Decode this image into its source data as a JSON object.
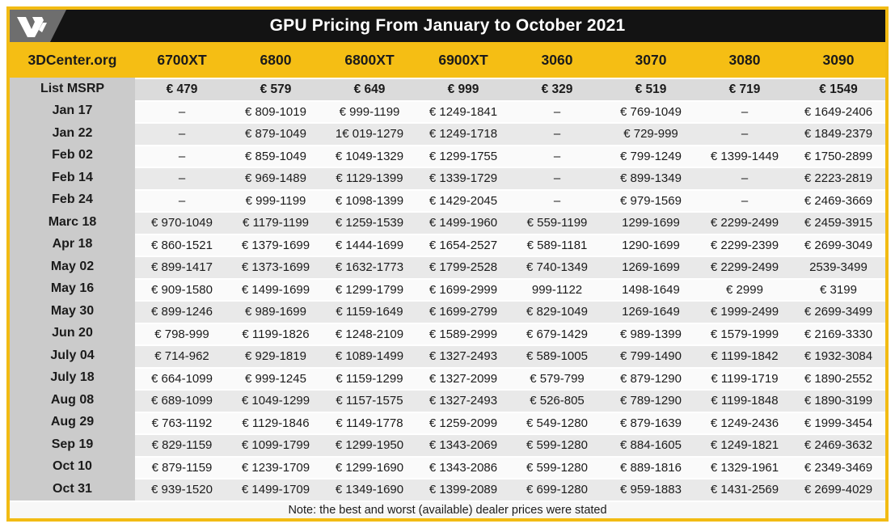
{
  "title": "GPU Pricing From January to October 2021",
  "note": "Note: the best and worst (available) dealer prices were stated",
  "icons": {
    "logo": "videocardz-v-icon"
  },
  "colors": {
    "accent_gold": "#F2BB13",
    "header_gold": "#F5BE14",
    "bar_black": "#131313",
    "date_column_gray": "#CBCBCB",
    "msrp_row_gray": "#DBDBDB",
    "stripe_light": "#FAFAFA",
    "stripe_dark": "#E9E9E9",
    "logo_gray": "#6E6E6E",
    "text": "#1b1b1b",
    "title_text": "#ffffff"
  },
  "chart_data": {
    "type": "table",
    "title": "GPU Pricing From January to October 2021",
    "source_label": "3DCenter.org",
    "columns": [
      "6700XT",
      "6800",
      "6800XT",
      "6900XT",
      "3060",
      "3070",
      "3080",
      "3090"
    ],
    "msrp": {
      "label": "List MSRP",
      "values": [
        "€ 479",
        "€ 579",
        "€ 649",
        "€ 999",
        "€ 329",
        "€ 519",
        "€ 719",
        "€ 1549"
      ]
    },
    "rows": [
      {
        "label": "Jan 17",
        "values": [
          "–",
          "€ 809-1019",
          "€ 999-1199",
          "€ 1249-1841",
          "–",
          "€ 769-1049",
          "–",
          "€ 1649-2406"
        ]
      },
      {
        "label": "Jan 22",
        "values": [
          "–",
          "€ 879-1049",
          "1€ 019-1279",
          "€ 1249-1718",
          "–",
          "€ 729-999",
          "–",
          "€ 1849-2379"
        ]
      },
      {
        "label": "Feb 02",
        "values": [
          "–",
          "€ 859-1049",
          "€ 1049-1329",
          "€ 1299-1755",
          "–",
          "€ 799-1249",
          "€ 1399-1449",
          "€ 1750-2899"
        ]
      },
      {
        "label": "Feb 14",
        "values": [
          "–",
          "€ 969-1489",
          "€ 1129-1399",
          "€ 1339-1729",
          "–",
          "€ 899-1349",
          "–",
          "€ 2223-2819"
        ]
      },
      {
        "label": "Feb 24",
        "values": [
          "–",
          "€ 999-1199",
          "€ 1098-1399",
          "€ 1429-2045",
          "–",
          "€ 979-1569",
          "–",
          "€ 2469-3669"
        ]
      },
      {
        "label": "Marc 18",
        "values": [
          "€ 970-1049",
          "€ 1179-1199",
          "€ 1259-1539",
          "€ 1499-1960",
          "€ 559-1199",
          "1299-1699",
          "€ 2299-2499",
          "€ 2459-3915"
        ]
      },
      {
        "label": "Apr 18",
        "values": [
          "€ 860-1521",
          "€ 1379-1699",
          "€ 1444-1699",
          "€ 1654-2527",
          "€ 589-1181",
          "1290-1699",
          "€ 2299-2399",
          "€ 2699-3049"
        ]
      },
      {
        "label": "May 02",
        "values": [
          "€ 899-1417",
          "€ 1373-1699",
          "€ 1632-1773",
          "€ 1799-2528",
          "€ 740-1349",
          "1269-1699",
          "€ 2299-2499",
          "2539-3499"
        ]
      },
      {
        "label": "May 16",
        "values": [
          "€ 909-1580",
          "€ 1499-1699",
          "€ 1299-1799",
          "€ 1699-2999",
          "999-1122",
          "1498-1649",
          "€ 2999",
          "€ 3199"
        ]
      },
      {
        "label": "May 30",
        "values": [
          "€ 899-1246",
          "€ 989-1699",
          "€ 1159-1649",
          "€ 1699-2799",
          "€ 829-1049",
          "1269-1649",
          "€ 1999-2499",
          "€ 2699-3499"
        ]
      },
      {
        "label": "Jun 20",
        "values": [
          "€ 798-999",
          "€ 1199-1826",
          "€ 1248-2109",
          "€ 1589-2999",
          "€ 679-1429",
          "€ 989-1399",
          "€ 1579-1999",
          "€ 2169-3330"
        ]
      },
      {
        "label": "July 04",
        "values": [
          "€ 714-962",
          "€ 929-1819",
          "€ 1089-1499",
          "€ 1327-2493",
          "€ 589-1005",
          "€ 799-1490",
          "€ 1199-1842",
          "€ 1932-3084"
        ]
      },
      {
        "label": "July 18",
        "values": [
          "€ 664-1099",
          "€ 999-1245",
          "€ 1159-1299",
          "€ 1327-2099",
          "€ 579-799",
          "€ 879-1290",
          "€ 1199-1719",
          "€ 1890-2552"
        ]
      },
      {
        "label": "Aug 08",
        "values": [
          "€ 689-1099",
          "€ 1049-1299",
          "€ 1157-1575",
          "€ 1327-2493",
          "€ 526-805",
          "€ 789-1290",
          "€ 1199-1848",
          "€ 1890-3199"
        ]
      },
      {
        "label": "Aug 29",
        "values": [
          "€ 763-1192",
          "€ 1129-1846",
          "€ 1149-1778",
          "€ 1259-2099",
          "€ 549-1280",
          "€ 879-1639",
          "€ 1249-2436",
          "€ 1999-3454"
        ]
      },
      {
        "label": "Sep 19",
        "values": [
          "€ 829-1159",
          "€ 1099-1799",
          "€ 1299-1950",
          "€ 1343-2069",
          "€ 599-1280",
          "€ 884-1605",
          "€ 1249-1821",
          "€ 2469-3632"
        ]
      },
      {
        "label": "Oct 10",
        "values": [
          "€ 879-1159",
          "€ 1239-1709",
          "€ 1299-1690",
          "€ 1343-2086",
          "€ 599-1280",
          "€ 889-1816",
          "€ 1329-1961",
          "€ 2349-3469"
        ]
      },
      {
        "label": "Oct 31",
        "values": [
          "€ 939-1520",
          "€ 1499-1709",
          "€ 1349-1690",
          "€ 1399-2089",
          "€ 699-1280",
          "€ 959-1883",
          "€ 1431-2569",
          "€ 2699-4029"
        ]
      }
    ]
  }
}
